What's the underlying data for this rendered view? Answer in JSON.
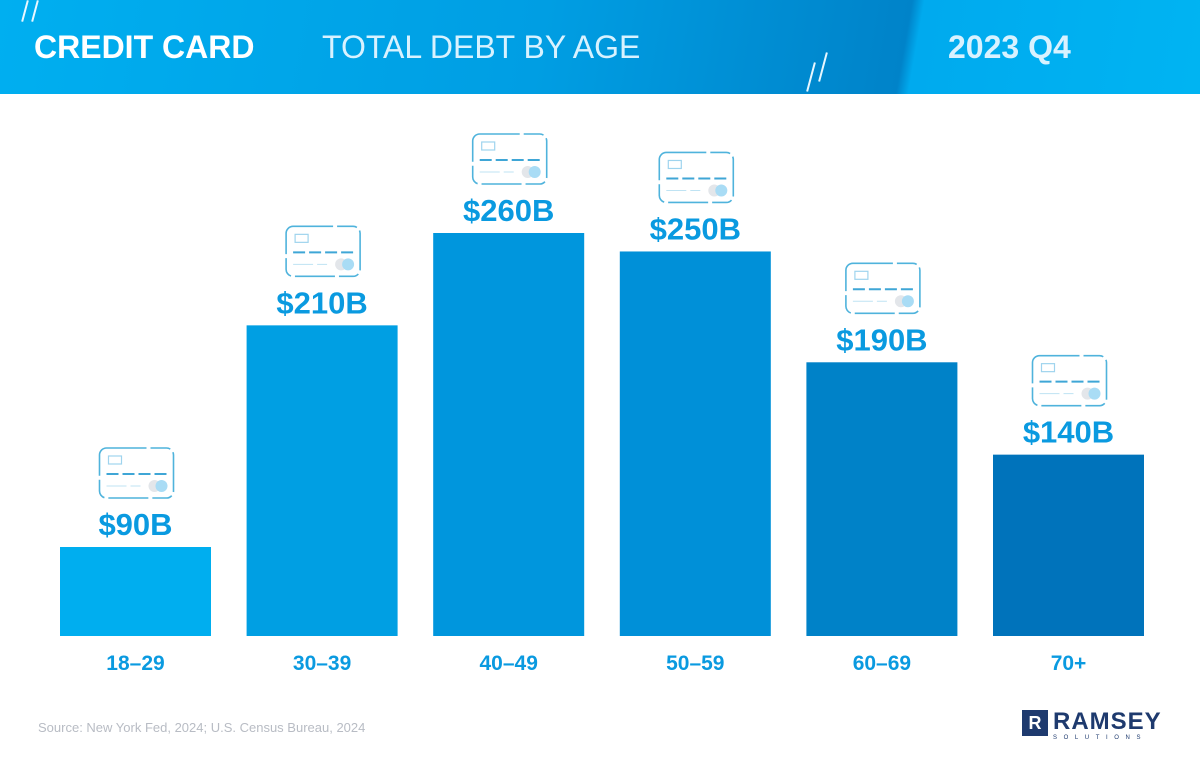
{
  "header": {
    "title_main": "CREDIT CARD",
    "title_sub": "TOTAL DEBT BY AGE",
    "period": "2023 Q4"
  },
  "chart_data": {
    "type": "bar",
    "title": "CREDIT CARD TOTAL DEBT BY AGE",
    "categories": [
      "18–29",
      "30–39",
      "40–49",
      "50–59",
      "60–69",
      "70+"
    ],
    "values": [
      90,
      210,
      260,
      250,
      190,
      140
    ],
    "value_labels": [
      "$90B",
      "$210B",
      "$260B",
      "$250B",
      "$190B",
      "$140B"
    ],
    "unit": "billions USD",
    "colors": [
      "#00aeef",
      "#009fe3",
      "#0096dd",
      "#0090d8",
      "#0082c8",
      "#0073bb"
    ],
    "ylim": [
      42,
      260
    ],
    "grid": false,
    "legend": "none",
    "icon": "credit-card-icon"
  },
  "footer": {
    "source": "Source: New York Fed, 2024; U.S. Census Bureau, 2024",
    "logo_text": "RAMSEY",
    "logo_sub": "SOLUTIONS",
    "logo_mark": "R"
  }
}
